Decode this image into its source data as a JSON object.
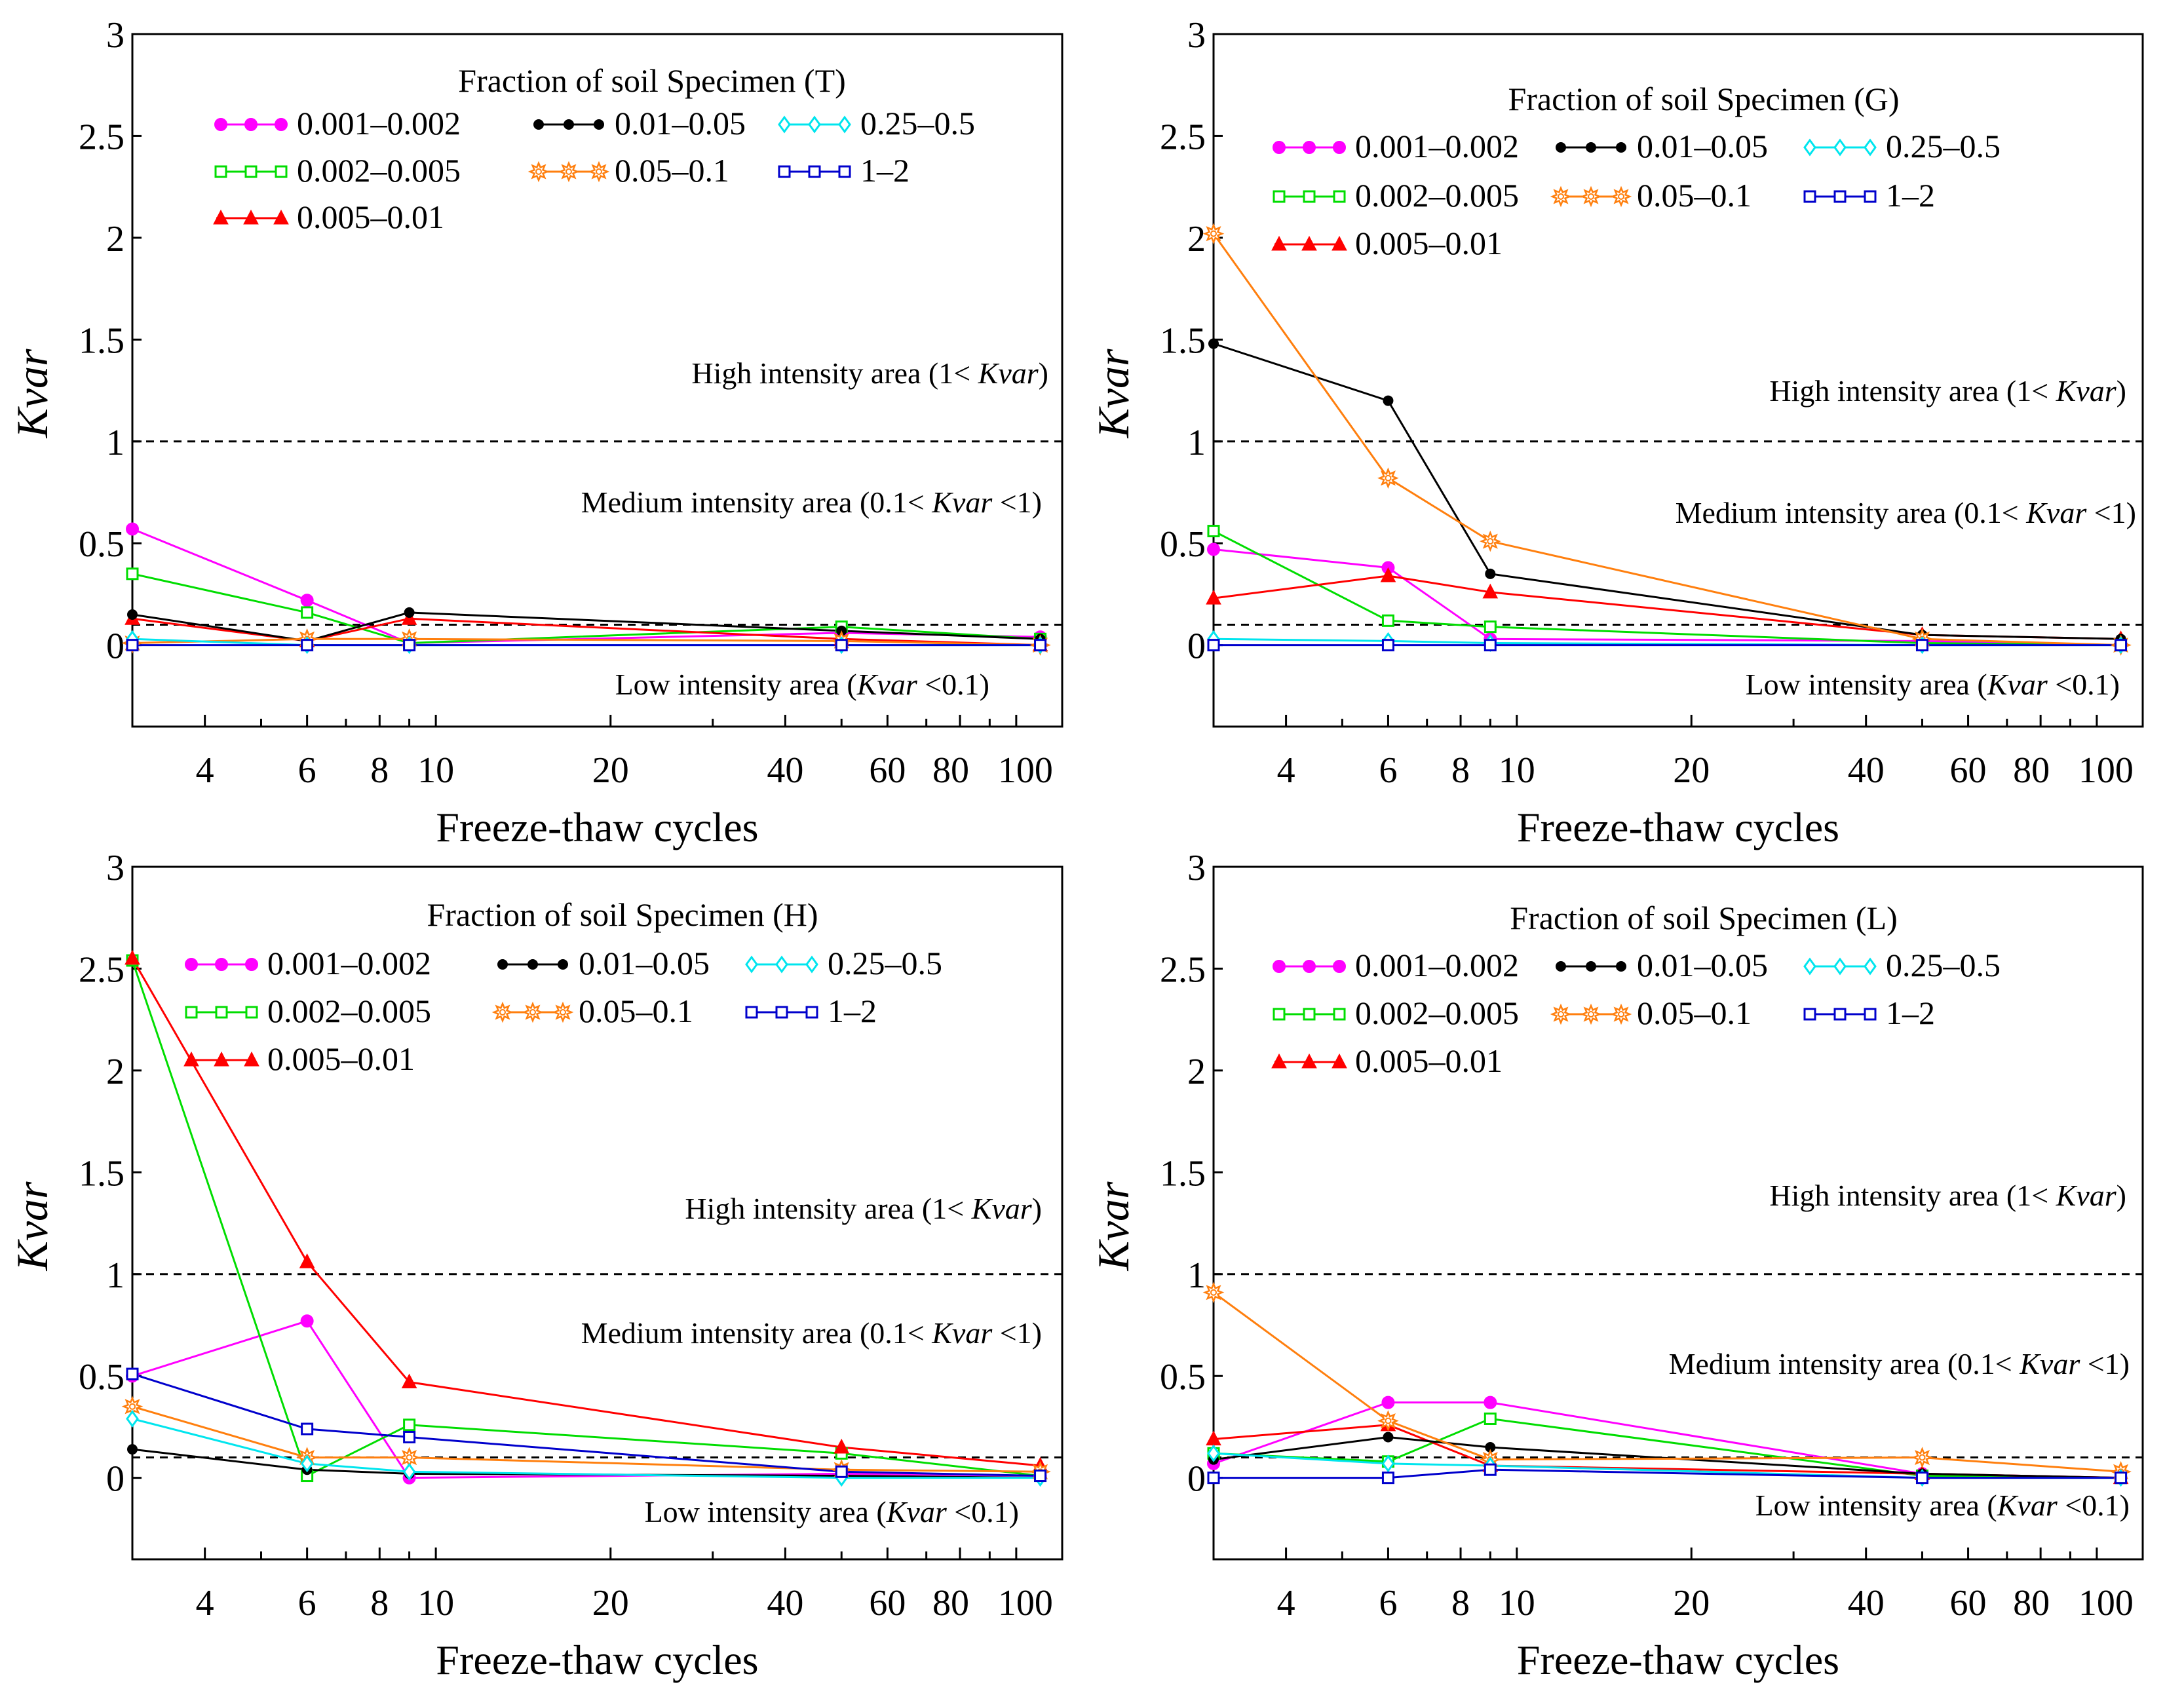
{
  "colors": {
    "0.001–0.002": "#ff00ff",
    "0.002–0.005": "#00dd00",
    "0.005–0.01": "#ff0000",
    "0.01–0.05": "#000000",
    "0.05–0.1": "#ff7f0e",
    "0.25–0.5": "#00e5ee",
    "1–2": "#0000cc",
    "threshold": "#000000"
  },
  "icons": {
    "0.001–0.002": "filled-circle",
    "0.002–0.005": "open-square",
    "0.005–0.01": "filled-triangle",
    "0.01–0.05": "small-filled-circle",
    "0.05–0.1": "open-star",
    "0.25–0.5": "open-diamond",
    "1–2": "open-square"
  },
  "chart_data": [
    {
      "type": "line",
      "panel": "T",
      "legend_title": "Fraction of soil  Specimen (T)",
      "xlabel": "Freeze-thaw cycles",
      "ylabel": "Kvar",
      "xscale": "log",
      "xlim": [
        3,
        120
      ],
      "ylim": [
        -0.4,
        3
      ],
      "xticks": [
        4,
        6,
        8,
        10,
        20,
        40,
        60,
        80,
        100
      ],
      "xtick_labels": [
        "4",
        "6",
        "8",
        "10",
        "20",
        "40",
        "60",
        "80",
        "100"
      ],
      "yticks": [
        0,
        0.5,
        1,
        1.5,
        2,
        2.5,
        3
      ],
      "ytick_labels": [
        "0",
        "0.5",
        "1",
        "1.5",
        "2",
        "2.5",
        "3"
      ],
      "thresholds": [
        1,
        0.1
      ],
      "regions": {
        "high": {
          "text": "High intensity area  (1< ",
          "var": "Kvar",
          "suffix": ")"
        },
        "medium": {
          "text": "Medium intensity area (0.1< ",
          "var": "Kvar",
          "suffix": " <1)"
        },
        "low": {
          "text": "Low intensity area  (",
          "var": "Kvar",
          "suffix": " <0.1)"
        }
      },
      "x": [
        3,
        6,
        9,
        50,
        110
      ],
      "series": [
        {
          "name": "0.001–0.002",
          "values": [
            0.57,
            0.22,
            0.01,
            0.06,
            0.04
          ]
        },
        {
          "name": "0.002–0.005",
          "values": [
            0.35,
            0.16,
            0.01,
            0.09,
            0.03
          ]
        },
        {
          "name": "0.005–0.01",
          "values": [
            0.13,
            0.02,
            0.13,
            0.03,
            0.0
          ]
        },
        {
          "name": "0.01–0.05",
          "values": [
            0.15,
            0.02,
            0.16,
            0.07,
            0.03
          ]
        },
        {
          "name": "0.05–0.1",
          "values": [
            0.01,
            0.03,
            0.03,
            0.02,
            0.0
          ]
        },
        {
          "name": "0.25–0.5",
          "values": [
            0.03,
            0.0,
            0.0,
            0.0,
            0.0
          ]
        },
        {
          "name": "1–2",
          "values": [
            0.0,
            0.0,
            0.0,
            0.0,
            0.0
          ]
        }
      ]
    },
    {
      "type": "line",
      "panel": "G",
      "legend_title": "Fraction of soil  Specimen (G)",
      "xlabel": "Freeze-thaw cycles",
      "ylabel": "Kvar",
      "xscale": "log",
      "xlim": [
        3,
        120
      ],
      "ylim": [
        -0.4,
        3
      ],
      "xticks": [
        4,
        6,
        8,
        10,
        20,
        40,
        60,
        80,
        100
      ],
      "xtick_labels": [
        "4",
        "6",
        "8",
        "10",
        "20",
        "40",
        "60",
        "80",
        "100"
      ],
      "yticks": [
        0,
        0.5,
        1,
        1.5,
        2,
        2.5,
        3
      ],
      "ytick_labels": [
        "0",
        "0.5",
        "1",
        "1.5",
        "2",
        "2.5",
        "3"
      ],
      "thresholds": [
        1,
        0.1
      ],
      "regions": {
        "high": {
          "text": "High intensity area  (1< ",
          "var": "Kvar",
          "suffix": ")"
        },
        "medium": {
          "text": "Medium intensity area (0.1< ",
          "var": "Kvar",
          "suffix": " <1)"
        },
        "low": {
          "text": "Low intensity area  (",
          "var": "Kvar",
          "suffix": " <0.1)"
        }
      },
      "x": [
        3,
        6,
        9,
        50,
        110
      ],
      "series": [
        {
          "name": "0.001–0.002",
          "values": [
            0.47,
            0.38,
            0.03,
            0.02,
            0.0
          ]
        },
        {
          "name": "0.002–0.005",
          "values": [
            0.56,
            0.12,
            0.09,
            0.01,
            0.0
          ]
        },
        {
          "name": "0.005–0.01",
          "values": [
            0.23,
            0.34,
            0.26,
            0.05,
            0.03
          ]
        },
        {
          "name": "0.01–0.05",
          "values": [
            1.48,
            1.2,
            0.35,
            0.05,
            0.03
          ]
        },
        {
          "name": "0.05–0.1",
          "values": [
            2.02,
            0.82,
            0.51,
            0.03,
            0.0
          ]
        },
        {
          "name": "0.25–0.5",
          "values": [
            0.03,
            0.02,
            0.01,
            0.0,
            0.0
          ]
        },
        {
          "name": "1–2",
          "values": [
            0.0,
            0.0,
            0.0,
            0.0,
            0.0
          ]
        }
      ]
    },
    {
      "type": "line",
      "panel": "H",
      "legend_title": "Fraction of soil  Specimen (H)",
      "xlabel": "Freeze-thaw cycles",
      "ylabel": "Kvar",
      "xscale": "log",
      "xlim": [
        3,
        120
      ],
      "ylim": [
        -0.4,
        3
      ],
      "xticks": [
        4,
        6,
        8,
        10,
        20,
        40,
        60,
        80,
        100
      ],
      "xtick_labels": [
        "4",
        "6",
        "8",
        "10",
        "20",
        "40",
        "60",
        "80",
        "100"
      ],
      "yticks": [
        0,
        0.5,
        1,
        1.5,
        2,
        2.5,
        3
      ],
      "ytick_labels": [
        "0",
        "0.5",
        "1",
        "1.5",
        "2",
        "2.5",
        "3"
      ],
      "thresholds": [
        1,
        0.1
      ],
      "regions": {
        "high": {
          "text": "High intensity area (1< ",
          "var": "Kvar",
          "suffix": ")"
        },
        "medium": {
          "text": "Medium intensity area (0.1< ",
          "var": "Kvar",
          "suffix": " <1)"
        },
        "low": {
          "text": "Low intensity area  (",
          "var": "Kvar",
          "suffix": " <0.1)"
        }
      },
      "x": [
        3,
        6,
        9,
        50,
        110
      ],
      "series": [
        {
          "name": "0.001–0.002",
          "values": [
            0.5,
            0.77,
            0.0,
            0.02,
            0.01
          ]
        },
        {
          "name": "0.002–0.005",
          "values": [
            2.54,
            0.01,
            0.26,
            0.12,
            0.01
          ]
        },
        {
          "name": "0.005–0.01",
          "values": [
            2.55,
            1.06,
            0.47,
            0.15,
            0.06
          ]
        },
        {
          "name": "0.01–0.05",
          "values": [
            0.14,
            0.04,
            0.02,
            0.01,
            0.0
          ]
        },
        {
          "name": "0.05–0.1",
          "values": [
            0.35,
            0.1,
            0.1,
            0.04,
            0.03
          ]
        },
        {
          "name": "0.25–0.5",
          "values": [
            0.29,
            0.07,
            0.03,
            0.0,
            0.0
          ]
        },
        {
          "name": "1–2",
          "values": [
            0.51,
            0.24,
            0.2,
            0.03,
            0.01
          ]
        }
      ]
    },
    {
      "type": "line",
      "panel": "L",
      "legend_title": "Fraction of soil  Specimen (L)",
      "xlabel": "Freeze-thaw cycles",
      "ylabel": "Kvar",
      "xscale": "log",
      "xlim": [
        3,
        120
      ],
      "ylim": [
        -0.4,
        3
      ],
      "xticks": [
        4,
        6,
        8,
        10,
        20,
        40,
        60,
        80,
        100
      ],
      "xtick_labels": [
        "4",
        "6",
        "8",
        "10",
        "20",
        "40",
        "60",
        "80",
        "100"
      ],
      "yticks": [
        0,
        0.5,
        1,
        1.5,
        2,
        2.5,
        3
      ],
      "ytick_labels": [
        "0",
        "0.5",
        "1",
        "1.5",
        "2",
        "2.5",
        "3"
      ],
      "thresholds": [
        1,
        0.1
      ],
      "regions": {
        "high": {
          "text": "High intensity area (1< ",
          "var": "Kvar",
          "suffix": ")"
        },
        "medium": {
          "text": "Medium intensity area (0.1< ",
          "var": "Kvar",
          "suffix": " <1)"
        },
        "low": {
          "text": "Low intensity area  (",
          "var": "Kvar",
          "suffix": " <0.1)"
        }
      },
      "x": [
        3,
        6,
        9,
        50,
        110
      ],
      "series": [
        {
          "name": "0.001–0.002",
          "values": [
            0.07,
            0.37,
            0.37,
            0.02,
            0.0
          ]
        },
        {
          "name": "0.002–0.005",
          "values": [
            0.12,
            0.08,
            0.29,
            0.01,
            0.0
          ]
        },
        {
          "name": "0.005–0.01",
          "values": [
            0.19,
            0.26,
            0.06,
            0.02,
            0.0
          ]
        },
        {
          "name": "0.01–0.05",
          "values": [
            0.09,
            0.2,
            0.15,
            0.02,
            0.0
          ]
        },
        {
          "name": "0.05–0.1",
          "values": [
            0.91,
            0.28,
            0.09,
            0.1,
            0.03
          ]
        },
        {
          "name": "0.25–0.5",
          "values": [
            0.12,
            0.07,
            0.06,
            0.0,
            0.0
          ]
        },
        {
          "name": "1–2",
          "values": [
            0.0,
            0.0,
            0.04,
            0.0,
            0.0
          ]
        }
      ]
    }
  ]
}
